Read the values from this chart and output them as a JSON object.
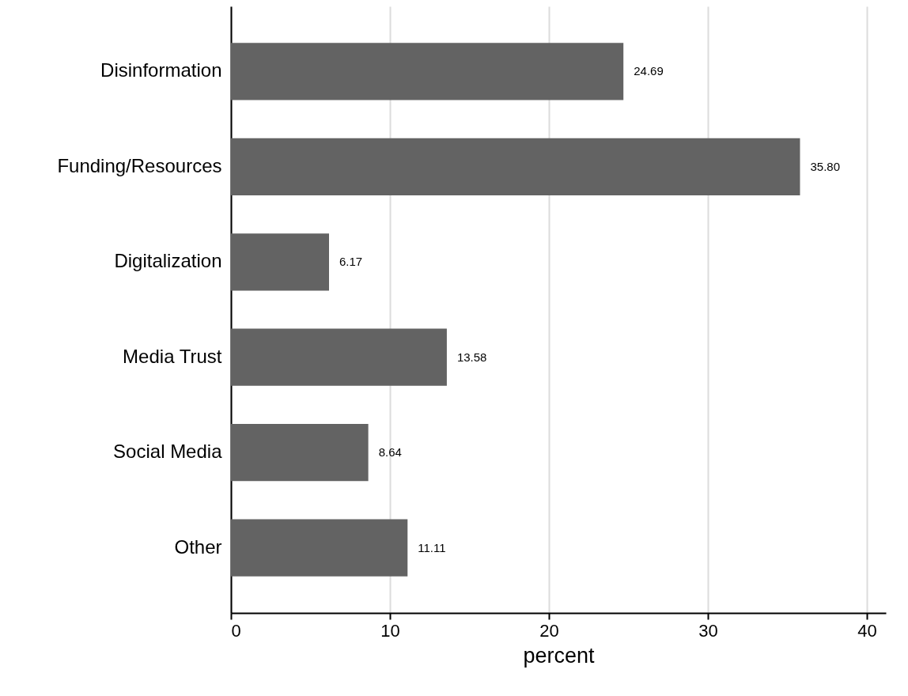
{
  "chart_data": {
    "type": "bar",
    "orientation": "horizontal",
    "xlabel": "percent",
    "categories": [
      "Disinformation",
      "Funding/Resources",
      "Digitalization",
      "Media Trust",
      "Social Media",
      "Other"
    ],
    "values": [
      24.69,
      35.8,
      6.17,
      13.58,
      8.64,
      11.11
    ],
    "color": "#636363",
    "value_labels": [
      "24.69",
      "35.80",
      "6.17",
      "13.58",
      "8.64",
      "11.11"
    ],
    "xlim": [
      0,
      41.2
    ],
    "xticks": [
      0,
      10,
      20,
      30,
      40
    ],
    "grid": "x"
  }
}
